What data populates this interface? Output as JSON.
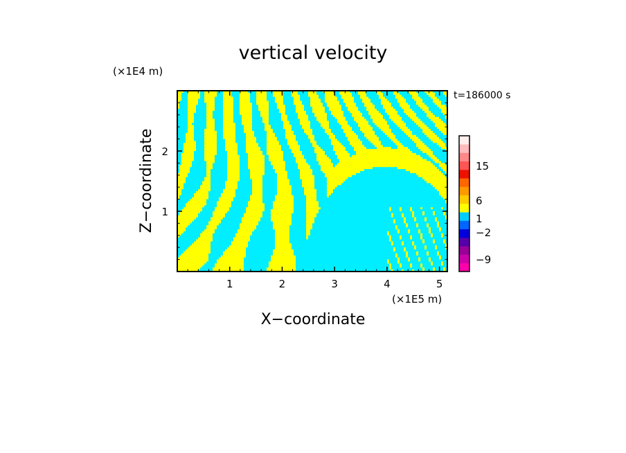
{
  "chart_data": {
    "type": "heatmap",
    "title": "vertical velocity",
    "xlabel": "X−coordinate",
    "ylabel": "Z−coordinate",
    "x_unit": "(×1E5 m)",
    "y_unit": "(×1E4 m)",
    "time_label": "t=186000 s",
    "xlim": [
      0,
      5.15
    ],
    "ylim": [
      0,
      3.0
    ],
    "x_ticks": [
      1,
      2,
      3,
      4,
      5
    ],
    "x_tick_labels": [
      "1",
      "2",
      "3",
      "4",
      "5"
    ],
    "y_ticks": [
      1,
      2
    ],
    "y_tick_labels": [
      "1",
      "2"
    ],
    "field_colors": {
      "positive": "#ffff00",
      "negative": "#00eeff"
    },
    "colorbar": {
      "labels": [
        {
          "value": "15",
          "level": 15
        },
        {
          "value": "6",
          "level": 6
        },
        {
          "value": "1",
          "level": 1
        },
        {
          "value": "−2",
          "level": -2
        },
        {
          "value": "−9",
          "level": -9
        }
      ],
      "bands": [
        {
          "color": "#ff00aa"
        },
        {
          "color": "#cc00aa"
        },
        {
          "color": "#990099"
        },
        {
          "color": "#5500aa"
        },
        {
          "color": "#0000dd"
        },
        {
          "color": "#0066ff"
        },
        {
          "color": "#00ccff"
        },
        {
          "color": "#ffff00"
        },
        {
          "color": "#ffcc00"
        },
        {
          "color": "#ff9900"
        },
        {
          "color": "#ff6600"
        },
        {
          "color": "#ee1100"
        },
        {
          "color": "#ff5555"
        },
        {
          "color": "#ff8888"
        },
        {
          "color": "#ffbbbb"
        },
        {
          "color": "#ffeeee"
        }
      ]
    }
  }
}
